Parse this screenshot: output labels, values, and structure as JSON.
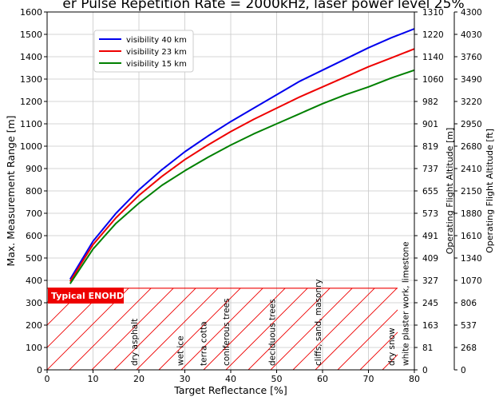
{
  "chart_data": {
    "type": "line",
    "title": "er Pulse Repetition Rate = 2000kHz, laser power level 25%",
    "xlabel": "Target Reflectance [%]",
    "ylabel": "Max. Measurement Range [m]",
    "right_label_m": "Operating Flight Altitude [m]",
    "right_label_ft": "Operating Flight Altitude [ft]",
    "xlim": [
      0,
      80
    ],
    "ylim": [
      0,
      1600
    ],
    "x_ticks": [
      "0",
      "10",
      "20",
      "30",
      "40",
      "50",
      "60",
      "70",
      "80"
    ],
    "y_ticks": [
      "0",
      "100",
      "200",
      "300",
      "400",
      "500",
      "600",
      "700",
      "800",
      "900",
      "1000",
      "1100",
      "1200",
      "1300",
      "1400",
      "1500",
      "1600"
    ],
    "right_ticks_m": [
      "0",
      "81",
      "163",
      "245",
      "327",
      "409",
      "491",
      "573",
      "655",
      "737",
      "819",
      "901",
      "982",
      "1060",
      "1140",
      "1220",
      "1310"
    ],
    "right_ticks_ft": [
      "0",
      "268",
      "537",
      "806",
      "1070",
      "1340",
      "1610",
      "1880",
      "2150",
      "2410",
      "2680",
      "2950",
      "3220",
      "3490",
      "3760",
      "4030",
      "4300"
    ],
    "grid": true,
    "legend_position": "top-left",
    "series": [
      {
        "name": "visibility 40 km",
        "color": "#0000ee",
        "x": [
          5,
          10,
          15,
          20,
          25,
          30,
          35,
          40,
          45,
          50,
          55,
          60,
          65,
          70,
          75,
          80
        ],
        "y": [
          405,
          575,
          700,
          805,
          895,
          975,
          1045,
          1110,
          1170,
          1230,
          1290,
          1340,
          1390,
          1440,
          1485,
          1525
        ]
      },
      {
        "name": "visibility 23 km",
        "color": "#ee0000",
        "x": [
          5,
          10,
          15,
          20,
          25,
          30,
          35,
          40,
          45,
          50,
          55,
          60,
          65,
          70,
          75,
          80
        ],
        "y": [
          395,
          560,
          680,
          780,
          865,
          940,
          1005,
          1065,
          1120,
          1170,
          1220,
          1265,
          1310,
          1355,
          1395,
          1435
        ]
      },
      {
        "name": "visibility 15 km",
        "color": "#008000",
        "x": [
          5,
          10,
          15,
          20,
          25,
          30,
          35,
          40,
          45,
          50,
          55,
          60,
          65,
          70,
          75,
          80
        ],
        "y": [
          385,
          540,
          655,
          745,
          825,
          890,
          950,
          1005,
          1055,
          1100,
          1145,
          1190,
          1230,
          1265,
          1305,
          1340
        ]
      }
    ],
    "enohd": {
      "label": "Typical ENOHD",
      "value": 365,
      "color": "#ee0000"
    },
    "surfaces": [
      {
        "label": "dry asphalt",
        "x": 20
      },
      {
        "label": "wet ice",
        "x": 30
      },
      {
        "label": "terra cotta",
        "x": 35
      },
      {
        "label": "coniferous trees",
        "x": 40
      },
      {
        "label": "deciduous trees",
        "x": 50
      },
      {
        "label": "cliffs, sand, masonry",
        "x": 60
      },
      {
        "label": "dry snow",
        "x": 76
      },
      {
        "label": "white plaster work, limestone",
        "x": 79
      }
    ]
  }
}
